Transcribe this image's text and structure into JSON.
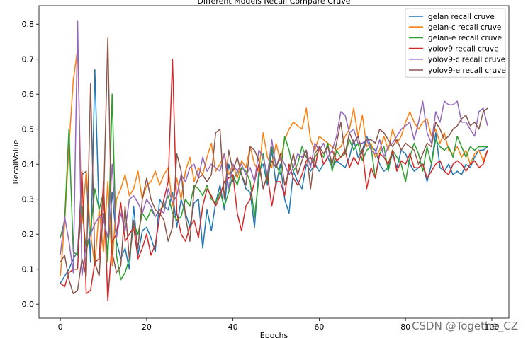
{
  "chart_data": {
    "type": "line",
    "title": "Different Models Recall Compare Cruve",
    "xlabel": "Epochs",
    "ylabel": "RecallValue",
    "xlim": [
      -4.95,
      103.95
    ],
    "ylim": [
      -0.04,
      0.853
    ],
    "xticks": [
      0,
      20,
      40,
      60,
      80,
      100
    ],
    "yticks": [
      0.0,
      0.1,
      0.2,
      0.3,
      0.4,
      0.5,
      0.6,
      0.7,
      0.8
    ],
    "grid": false,
    "legend_position": "top-right",
    "x": [
      0,
      1,
      2,
      3,
      4,
      5,
      6,
      7,
      8,
      9,
      10,
      11,
      12,
      13,
      14,
      15,
      16,
      17,
      18,
      19,
      20,
      21,
      22,
      23,
      24,
      25,
      26,
      27,
      28,
      29,
      30,
      31,
      32,
      33,
      34,
      35,
      36,
      37,
      38,
      39,
      40,
      41,
      42,
      43,
      44,
      45,
      46,
      47,
      48,
      49,
      50,
      51,
      52,
      53,
      54,
      55,
      56,
      57,
      58,
      59,
      60,
      61,
      62,
      63,
      64,
      65,
      66,
      67,
      68,
      69,
      70,
      71,
      72,
      73,
      74,
      75,
      76,
      77,
      78,
      79,
      80,
      81,
      82,
      83,
      84,
      85,
      86,
      87,
      88,
      89,
      90,
      91,
      92,
      93,
      94,
      95,
      96,
      97,
      98,
      99
    ],
    "series": [
      {
        "name": "gelan recall cruve",
        "color": "#1f77b4",
        "values": [
          0.06,
          0.08,
          0.1,
          0.13,
          0.15,
          0.37,
          0.38,
          0.12,
          0.67,
          0.25,
          0.26,
          0.15,
          0.32,
          0.18,
          0.13,
          0.16,
          0.1,
          0.28,
          0.14,
          0.21,
          0.22,
          0.19,
          0.15,
          0.3,
          0.28,
          0.27,
          0.32,
          0.22,
          0.3,
          0.26,
          0.22,
          0.29,
          0.3,
          0.16,
          0.27,
          0.21,
          0.29,
          0.34,
          0.27,
          0.4,
          0.35,
          0.38,
          0.37,
          0.33,
          0.32,
          0.22,
          0.38,
          0.4,
          0.34,
          0.44,
          0.34,
          0.4,
          0.3,
          0.26,
          0.38,
          0.35,
          0.33,
          0.4,
          0.38,
          0.4,
          0.38,
          0.4,
          0.42,
          0.39,
          0.41,
          0.4,
          0.39,
          0.42,
          0.47,
          0.42,
          0.44,
          0.48,
          0.45,
          0.44,
          0.4,
          0.38,
          0.39,
          0.43,
          0.39,
          0.44,
          0.43,
          0.4,
          0.38,
          0.39,
          0.4,
          0.35,
          0.4,
          0.49,
          0.39,
          0.38,
          0.4,
          0.37,
          0.38,
          0.37,
          0.4,
          0.39,
          0.42,
          0.44,
          0.44,
          0.45
        ]
      },
      {
        "name": "gelan-c recall cruve",
        "color": "#ff7f0e",
        "values": [
          0.08,
          0.23,
          0.45,
          0.64,
          0.73,
          0.23,
          0.38,
          0.2,
          0.11,
          0.27,
          0.15,
          0.35,
          0.11,
          0.3,
          0.33,
          0.37,
          0.31,
          0.33,
          0.38,
          0.3,
          0.34,
          0.35,
          0.38,
          0.34,
          0.37,
          0.39,
          0.28,
          0.36,
          0.3,
          0.38,
          0.42,
          0.35,
          0.39,
          0.37,
          0.42,
          0.46,
          0.38,
          0.4,
          0.43,
          0.37,
          0.4,
          0.36,
          0.41,
          0.39,
          0.45,
          0.4,
          0.38,
          0.49,
          0.42,
          0.39,
          0.46,
          0.41,
          0.47,
          0.5,
          0.52,
          0.51,
          0.5,
          0.56,
          0.47,
          0.44,
          0.48,
          0.47,
          0.46,
          0.45,
          0.44,
          0.45,
          0.48,
          0.5,
          0.56,
          0.48,
          0.54,
          0.45,
          0.46,
          0.42,
          0.44,
          0.48,
          0.44,
          0.5,
          0.46,
          0.48,
          0.52,
          0.55,
          0.52,
          0.5,
          0.52,
          0.53,
          0.48,
          0.5,
          0.46,
          0.49,
          0.44,
          0.43,
          0.45,
          0.42,
          0.44,
          0.4,
          0.43,
          0.44,
          0.41,
          0.44
        ]
      },
      {
        "name": "gelan-e recall cruve",
        "color": "#2ca02c",
        "values": [
          0.19,
          0.24,
          0.5,
          0.15,
          0.14,
          0.28,
          0.15,
          0.21,
          0.33,
          0.27,
          0.32,
          0.12,
          0.6,
          0.14,
          0.07,
          0.09,
          0.13,
          0.23,
          0.2,
          0.26,
          0.24,
          0.27,
          0.25,
          0.27,
          0.28,
          0.31,
          0.26,
          0.24,
          0.25,
          0.3,
          0.28,
          0.34,
          0.33,
          0.31,
          0.34,
          0.3,
          0.29,
          0.32,
          0.28,
          0.32,
          0.37,
          0.34,
          0.39,
          0.38,
          0.35,
          0.25,
          0.36,
          0.43,
          0.35,
          0.45,
          0.4,
          0.37,
          0.48,
          0.44,
          0.38,
          0.4,
          0.45,
          0.42,
          0.4,
          0.42,
          0.44,
          0.42,
          0.46,
          0.38,
          0.44,
          0.42,
          0.43,
          0.47,
          0.44,
          0.46,
          0.41,
          0.44,
          0.45,
          0.36,
          0.43,
          0.45,
          0.38,
          0.44,
          0.42,
          0.4,
          0.35,
          0.42,
          0.46,
          0.43,
          0.38,
          0.45,
          0.4,
          0.47,
          0.45,
          0.44,
          0.45,
          0.42,
          0.48,
          0.45,
          0.42,
          0.45,
          0.44,
          0.45,
          0.45,
          0.45
        ]
      },
      {
        "name": "yolov9 recall cruve",
        "color": "#d62728",
        "values": [
          0.06,
          0.05,
          0.09,
          0.1,
          0.1,
          0.38,
          0.03,
          0.04,
          0.12,
          0.13,
          0.35,
          0.01,
          0.18,
          0.2,
          0.29,
          0.18,
          0.2,
          0.22,
          0.13,
          0.16,
          0.2,
          0.14,
          0.17,
          0.25,
          0.3,
          0.35,
          0.7,
          0.26,
          0.2,
          0.18,
          0.22,
          0.24,
          0.19,
          0.28,
          0.33,
          0.31,
          0.28,
          0.31,
          0.35,
          0.36,
          0.37,
          0.26,
          0.21,
          0.28,
          0.3,
          0.35,
          0.4,
          0.33,
          0.37,
          0.28,
          0.35,
          0.35,
          0.31,
          0.4,
          0.36,
          0.34,
          0.37,
          0.41,
          0.42,
          0.39,
          0.45,
          0.4,
          0.42,
          0.44,
          0.41,
          0.42,
          0.44,
          0.39,
          0.42,
          0.4,
          0.44,
          0.33,
          0.39,
          0.36,
          0.43,
          0.42,
          0.4,
          0.44,
          0.38,
          0.41,
          0.4,
          0.43,
          0.39,
          0.39,
          0.4,
          0.36,
          0.38,
          0.4,
          0.41,
          0.38,
          0.37,
          0.4,
          0.41,
          0.4,
          0.38,
          0.4,
          0.41,
          0.39,
          0.4,
          0.44
        ]
      },
      {
        "name": "yolov9-c recall cruve",
        "color": "#9467bd",
        "values": [
          0.14,
          0.25,
          0.18,
          0.09,
          0.81,
          0.08,
          0.17,
          0.2,
          0.23,
          0.25,
          0.24,
          0.19,
          0.4,
          0.19,
          0.26,
          0.21,
          0.3,
          0.31,
          0.29,
          0.26,
          0.3,
          0.28,
          0.25,
          0.27,
          0.26,
          0.33,
          0.29,
          0.31,
          0.37,
          0.35,
          0.39,
          0.4,
          0.36,
          0.42,
          0.38,
          0.4,
          0.39,
          0.38,
          0.43,
          0.33,
          0.4,
          0.38,
          0.4,
          0.37,
          0.39,
          0.35,
          0.44,
          0.42,
          0.37,
          0.47,
          0.39,
          0.42,
          0.4,
          0.37,
          0.39,
          0.43,
          0.42,
          0.44,
          0.39,
          0.46,
          0.44,
          0.46,
          0.42,
          0.44,
          0.48,
          0.55,
          0.54,
          0.49,
          0.5,
          0.46,
          0.46,
          0.47,
          0.44,
          0.43,
          0.47,
          0.42,
          0.45,
          0.46,
          0.48,
          0.5,
          0.51,
          0.52,
          0.47,
          0.52,
          0.58,
          0.49,
          0.46,
          0.55,
          0.52,
          0.58,
          0.57,
          0.57,
          0.58,
          0.52,
          0.52,
          0.5,
          0.48,
          0.55,
          0.56,
          0.51
        ]
      },
      {
        "name": "yolov9-e recall cruve",
        "color": "#8c564b",
        "values": [
          0.12,
          0.14,
          0.07,
          0.03,
          0.04,
          0.13,
          0.08,
          0.63,
          0.12,
          0.08,
          0.28,
          0.76,
          0.15,
          0.09,
          0.11,
          0.28,
          0.13,
          0.24,
          0.16,
          0.3,
          0.36,
          0.3,
          0.27,
          0.26,
          0.24,
          0.18,
          0.22,
          0.43,
          0.38,
          0.25,
          0.18,
          0.33,
          0.36,
          0.37,
          0.35,
          0.37,
          0.49,
          0.5,
          0.3,
          0.44,
          0.38,
          0.42,
          0.37,
          0.34,
          0.45,
          0.44,
          0.41,
          0.33,
          0.37,
          0.41,
          0.39,
          0.43,
          0.34,
          0.38,
          0.43,
          0.37,
          0.41,
          0.44,
          0.33,
          0.43,
          0.45,
          0.43,
          0.45,
          0.4,
          0.46,
          0.52,
          0.43,
          0.49,
          0.46,
          0.48,
          0.43,
          0.47,
          0.47,
          0.46,
          0.5,
          0.49,
          0.47,
          0.45,
          0.47,
          0.44,
          0.46,
          0.45,
          0.44,
          0.4,
          0.43,
          0.46,
          0.45,
          0.52,
          0.5,
          0.47,
          0.48,
          0.5,
          0.51,
          0.53,
          0.54,
          0.51,
          0.52,
          0.5,
          0.55,
          0.56
        ]
      }
    ]
  },
  "watermark": "CSDN @Togethe_CZ"
}
